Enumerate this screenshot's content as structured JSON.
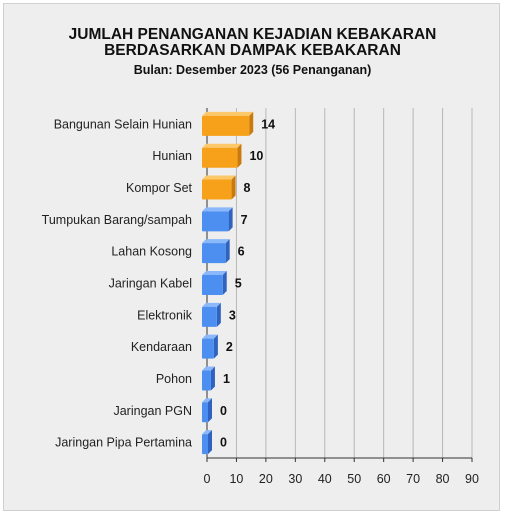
{
  "header": {
    "title_line1": "JUMLAH PENANGANAN KEJADIAN KEBAKARAN",
    "title_line2": "BERDASARKAN DAMPAK KEBAKARAN",
    "subtitle": "Bulan: Desember 2023 (56 Penanganan)"
  },
  "chart_data": {
    "type": "bar",
    "orientation": "horizontal",
    "title": "JUMLAH PENANGANAN KEJADIAN KEBAKARAN BERDASARKAN DAMPAK KEBAKARAN",
    "subtitle": "Bulan: Desember 2023 (56 Penanganan)",
    "categories": [
      "Bangunan Selain Hunian",
      "Hunian",
      "Kompor Set",
      "Tumpukan Barang/sampah",
      "Lahan Kosong",
      "Jaringan Kabel",
      "Elektronik",
      "Kendaraan",
      "Pohon",
      "Jaringan PGN",
      "Jaringan Pipa Pertamina"
    ],
    "values": [
      14,
      10,
      8,
      7,
      6,
      5,
      3,
      2,
      1,
      0,
      0
    ],
    "xlim": [
      0,
      90
    ],
    "xticks": [
      0,
      10,
      20,
      30,
      40,
      50,
      60,
      70,
      80,
      90
    ],
    "grid": true,
    "data_labels": true,
    "colors": {
      "top3_front": "#f7a11a",
      "top3_top": "#fcc86a",
      "top3_side": "#c97a0c",
      "other_front": "#4d8ff0",
      "other_top": "#8ab8fb",
      "other_side": "#2f63bf",
      "grid": "#b8b8b8",
      "axis": "#333333"
    }
  }
}
